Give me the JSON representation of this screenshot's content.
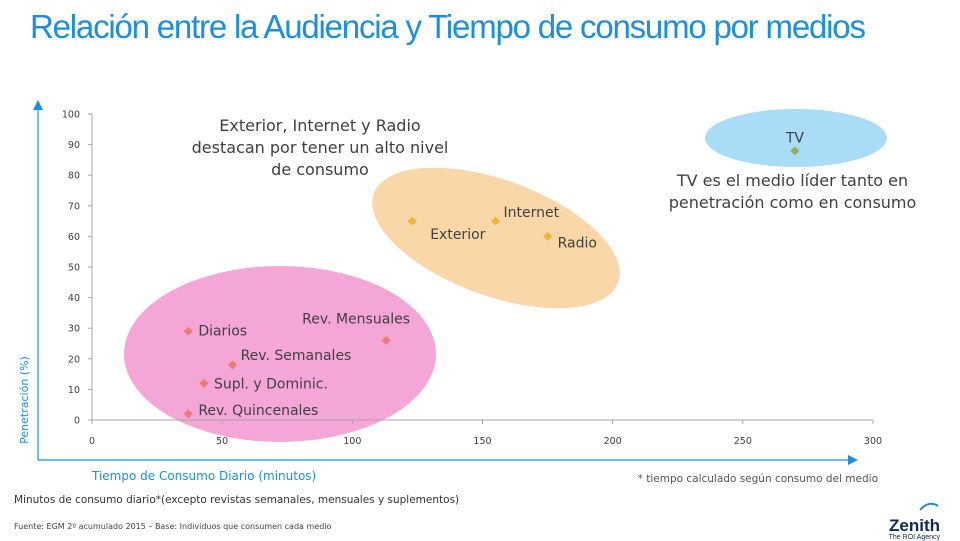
{
  "title": "Relación entre la Audiencia y Tiempo de consumo por medios",
  "callouts": {
    "left": "Exterior, Internet  y Radio destacan por tener un alto nivel de consumo",
    "right": "TV es el medio líder tanto en penetración como en consumo"
  },
  "footnote_right": "* tiempo calculado según consumo del medio",
  "subtitle_bottom": "Minutos de consumo diario*(excepto revistas semanales, mensuales  y suplementos)",
  "source": "Fuente: EGM 2º acumulado 2015 – Base: Individuos que consumen cada medio",
  "logo": {
    "name": "Zenith",
    "tagline": "The ROI Agency"
  },
  "colors": {
    "title": "#1a8fe0",
    "axis_label": "#1a8fe0",
    "ellipse_pink": "#f4a6d7",
    "ellipse_orange": "#fad7a8",
    "ellipse_blue": "#a9dcf6",
    "marker_pink": "#ee7b70",
    "marker_orange": "#f5b23a",
    "marker_tv": "#9aab57"
  },
  "chart_data": {
    "type": "scatter",
    "xlabel": "Tiempo de Consumo Diario (minutos)",
    "ylabel": "Penetración (%)",
    "xlim": [
      0,
      300
    ],
    "ylim": [
      0,
      100
    ],
    "xticks": [
      0,
      50,
      100,
      150,
      200,
      250,
      300
    ],
    "yticks": [
      0,
      10,
      20,
      30,
      40,
      50,
      60,
      70,
      80,
      90,
      100
    ],
    "grid": false,
    "points": [
      {
        "label": "Diarios",
        "x": 37,
        "y": 29,
        "group": "pink"
      },
      {
        "label": "Rev. Semanales",
        "x": 54,
        "y": 18,
        "group": "pink"
      },
      {
        "label": "Supl. y Dominic.",
        "x": 43,
        "y": 12,
        "group": "pink"
      },
      {
        "label": "Rev. Quincenales",
        "x": 37,
        "y": 2,
        "group": "pink"
      },
      {
        "label": "Rev. Mensuales",
        "x": 113,
        "y": 26,
        "group": "pink"
      },
      {
        "label": "Exterior",
        "x": 123,
        "y": 65,
        "group": "orange"
      },
      {
        "label": "Internet",
        "x": 155,
        "y": 65,
        "group": "orange"
      },
      {
        "label": "Radio",
        "x": 175,
        "y": 60,
        "group": "orange"
      },
      {
        "label": "TV",
        "x": 270,
        "y": 88,
        "group": "tv"
      }
    ]
  }
}
